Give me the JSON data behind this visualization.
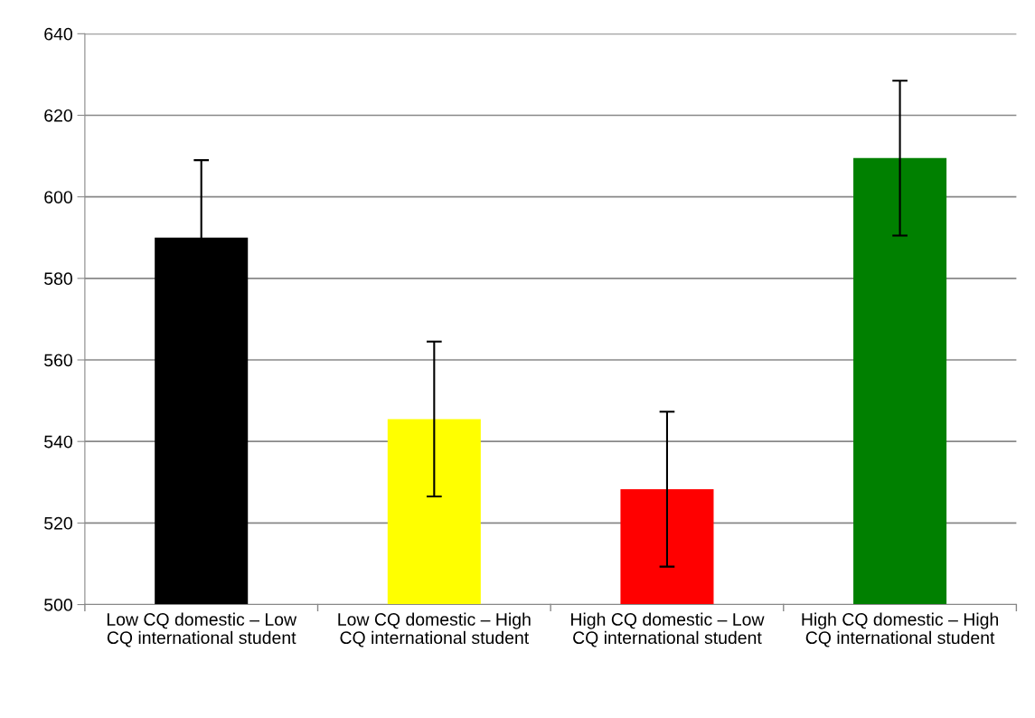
{
  "chart_data": {
    "type": "bar",
    "categories": [
      "Low CQ domestic – Low CQ international student",
      "Low CQ domestic – High CQ international student",
      "High CQ domestic – Low CQ international student",
      "High CQ domestic – High CQ international student"
    ],
    "values": [
      590,
      545.5,
      528.3,
      609.5
    ],
    "errors": [
      19,
      19,
      19,
      19
    ],
    "colors": [
      "#000000",
      "#ffff00",
      "#ff0000",
      "#008000"
    ],
    "ylim": [
      500,
      640
    ],
    "yticks": [
      500,
      520,
      540,
      560,
      580,
      600,
      620,
      640
    ],
    "grid": "y"
  }
}
